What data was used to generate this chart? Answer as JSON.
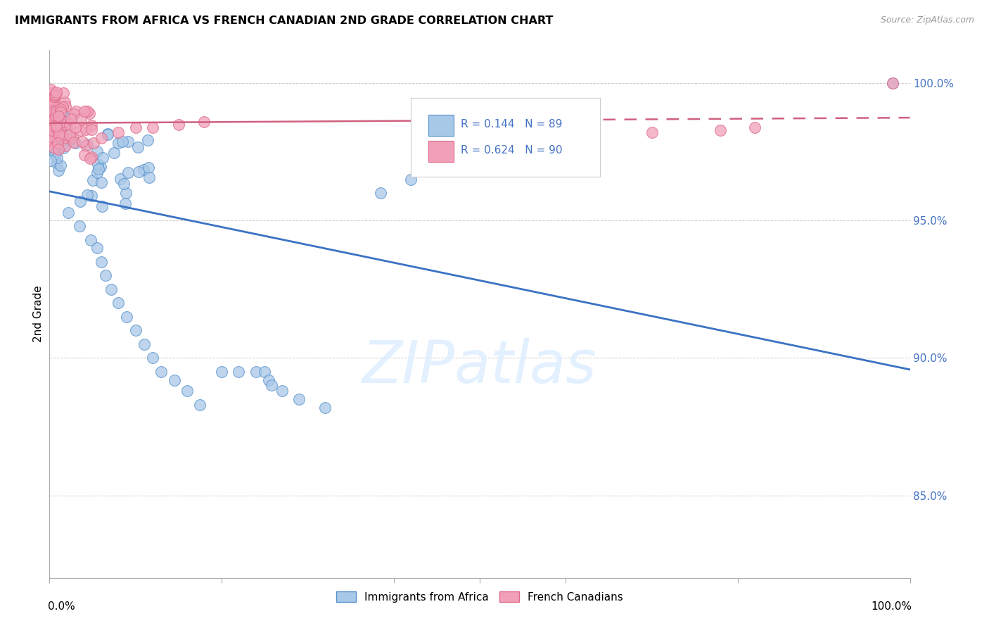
{
  "title": "IMMIGRANTS FROM AFRICA VS FRENCH CANADIAN 2ND GRADE CORRELATION CHART",
  "source": "Source: ZipAtlas.com",
  "ylabel": "2nd Grade",
  "blue_color": "#A8C8E8",
  "pink_color": "#F0A0B8",
  "blue_edge_color": "#5590CC",
  "pink_edge_color": "#E06888",
  "blue_line_color": "#3A72C4",
  "pink_line_color": "#D06080",
  "legend_text1": "R = 0.144   N = 89",
  "legend_text2": "R = 0.624   N = 90",
  "ytick_vals": [
    0.85,
    0.9,
    0.95,
    1.0
  ],
  "ytick_labels": [
    "85.0%",
    "90.0%",
    "95.0%",
    "100.0%"
  ],
  "xlim": [
    0.0,
    1.0
  ],
  "ylim": [
    0.82,
    1.012
  ],
  "watermark": "ZIPatlas",
  "bottom_legend": [
    "Immigrants from Africa",
    "French Canadians"
  ]
}
